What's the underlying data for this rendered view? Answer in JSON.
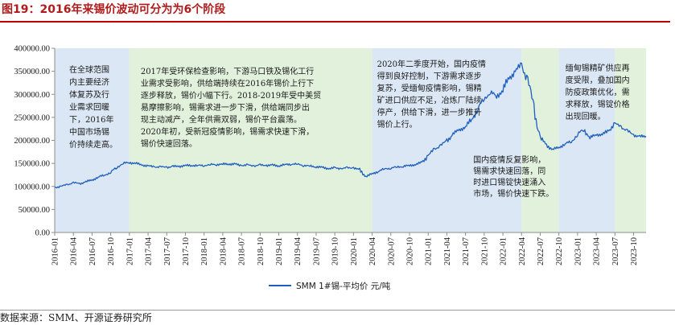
{
  "header": {
    "title": "图19：2016年来锡价波动可分为为6个阶段"
  },
  "footer": {
    "source": "数据来源：SMM、开源证券研究所"
  },
  "chart_data": {
    "type": "line",
    "title": "",
    "xlabel": "",
    "ylabel": "",
    "ylim": [
      0,
      400000
    ],
    "yticks": [
      "0.00",
      "50000.00",
      "100000.00",
      "150000.00",
      "200000.00",
      "250000.00",
      "300000.00",
      "350000.00",
      "400000.00"
    ],
    "ytick_values": [
      0,
      50000,
      100000,
      150000,
      200000,
      250000,
      300000,
      350000,
      400000
    ],
    "x_range": [
      "2016-01",
      "2023-12"
    ],
    "xticks": [
      "2016-01",
      "2016-04",
      "2016-07",
      "2016-10",
      "2017-01",
      "2017-04",
      "2017-07",
      "2017-10",
      "2018-01",
      "2018-04",
      "2018-07",
      "2018-10",
      "2019-01",
      "2019-04",
      "2019-07",
      "2019-10",
      "2020-01",
      "2020-04",
      "2020-07",
      "2020-10",
      "2021-01",
      "2021-04",
      "2021-07",
      "2021-10",
      "2022-01",
      "2022-04",
      "2022-07",
      "2022-10",
      "2023-01",
      "2023-04",
      "2023-07",
      "2023-10"
    ],
    "grid": false,
    "legend_position": "bottom-center",
    "line_color": "#1f5fbf",
    "series": [
      {
        "name": "SMM 1#锡-平均价 元/吨",
        "x": [
          "2016-01",
          "2016-02",
          "2016-03",
          "2016-04",
          "2016-05",
          "2016-06",
          "2016-07",
          "2016-08",
          "2016-09",
          "2016-10",
          "2016-11",
          "2016-12",
          "2017-01",
          "2017-02",
          "2017-03",
          "2017-04",
          "2017-05",
          "2017-06",
          "2017-07",
          "2017-08",
          "2017-09",
          "2017-10",
          "2017-11",
          "2017-12",
          "2018-01",
          "2018-02",
          "2018-03",
          "2018-04",
          "2018-05",
          "2018-06",
          "2018-07",
          "2018-08",
          "2018-09",
          "2018-10",
          "2018-11",
          "2018-12",
          "2019-01",
          "2019-02",
          "2019-03",
          "2019-04",
          "2019-05",
          "2019-06",
          "2019-07",
          "2019-08",
          "2019-09",
          "2019-10",
          "2019-11",
          "2019-12",
          "2020-01",
          "2020-02",
          "2020-03",
          "2020-04",
          "2020-05",
          "2020-06",
          "2020-07",
          "2020-08",
          "2020-09",
          "2020-10",
          "2020-11",
          "2020-12",
          "2021-01",
          "2021-02",
          "2021-03",
          "2021-04",
          "2021-05",
          "2021-06",
          "2021-07",
          "2021-08",
          "2021-09",
          "2021-10",
          "2021-11",
          "2021-12",
          "2022-01",
          "2022-02",
          "2022-03",
          "2022-04",
          "2022-05",
          "2022-06",
          "2022-07",
          "2022-08",
          "2022-09",
          "2022-10",
          "2022-11",
          "2022-12",
          "2023-01",
          "2023-02",
          "2023-03",
          "2023-04",
          "2023-05",
          "2023-06",
          "2023-07",
          "2023-08",
          "2023-09",
          "2023-10",
          "2023-11",
          "2023-12"
        ],
        "values": [
          98000,
          100000,
          104000,
          108000,
          106000,
          110000,
          114000,
          120000,
          125000,
          130000,
          142000,
          150000,
          152000,
          150000,
          147000,
          144000,
          143000,
          142000,
          142000,
          143000,
          144000,
          145000,
          146000,
          145000,
          146000,
          147000,
          148000,
          148000,
          149000,
          148000,
          146000,
          146000,
          145000,
          146000,
          146000,
          146000,
          145000,
          147000,
          149000,
          148000,
          146000,
          144000,
          143000,
          141000,
          139000,
          140000,
          139000,
          140000,
          141000,
          135000,
          122000,
          127000,
          133000,
          138000,
          140000,
          142000,
          144000,
          145000,
          148000,
          152000,
          168000,
          180000,
          190000,
          198000,
          215000,
          222000,
          230000,
          245000,
          270000,
          290000,
          305000,
          295000,
          310000,
          335000,
          350000,
          365000,
          330000,
          270000,
          205000,
          190000,
          180000,
          185000,
          192000,
          198000,
          212000,
          225000,
          205000,
          213000,
          212000,
          222000,
          236000,
          230000,
          220000,
          212000,
          208000,
          209000
        ]
      }
    ],
    "phases": [
      {
        "start": "2016-01",
        "end": "2017-01",
        "color": "#dbe7f4",
        "label": [
          "在全球范围",
          "内主要经济",
          "体复苏及行",
          "业需求回暖",
          "下，2016年",
          "中国市场锡",
          "价持续走高。"
        ]
      },
      {
        "start": "2017-01",
        "end": "2020-04",
        "color": "#e1f1dc",
        "label": [
          "2017年受环保检查影响，下游马口铁及锡化工行",
          "业需求受影响，供给端持续在2016年锡价上行下",
          "逐步释放，锡价小幅下行。2018-2019年受中美贸",
          "易摩擦影响，锡需求进一步下滑，供给端同步出",
          "现主动减产，全年供需双弱，锡价平台震荡。",
          "2020年初，受新冠疫情影响，锡需求快速下滑，",
          "锡价快速回落。"
        ]
      },
      {
        "start": "2020-04",
        "end": "2022-04",
        "color": "#dbe7f4",
        "label": [
          "2020年二季度开始，国内疫情",
          "得到良好控制，下游需求逐步",
          "复苏，受缅甸疫情影响，锡精",
          "矿进口供应不足，冶炼厂陆续",
          "停产，供给下滑，进一步推升",
          "锡价上行。"
        ]
      },
      {
        "start": "2022-04",
        "end": "2022-10",
        "color": "#e1f1dc",
        "label": [
          "国内疫情反复影响，",
          "锡需求快速回落，同",
          "时进口锡锭快速涌入",
          "市场，锡价快速下跌。"
        ]
      },
      {
        "start": "2022-10",
        "end": "2023-07",
        "color": "#dbe7f4",
        "label": [
          "缅甸锡精矿供应再",
          "度受限，叠加国内",
          "防疫政策优化，需",
          "求释放，锡锭价格",
          "出现回暖。"
        ]
      },
      {
        "start": "2023-07",
        "end": "2023-12",
        "color": "#e1f1dc",
        "label": []
      }
    ]
  }
}
